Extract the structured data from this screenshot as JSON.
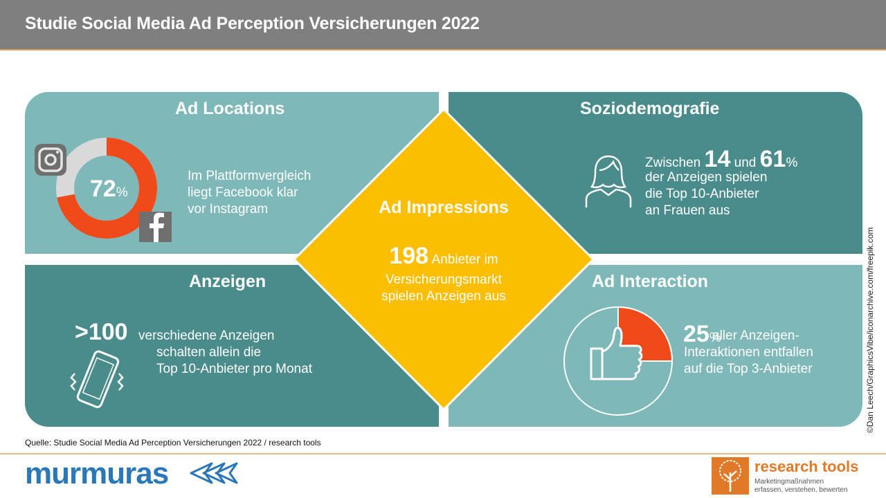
{
  "header": {
    "title": "Studie Social Media Ad Perception Versicherungen 2022"
  },
  "ad_locations": {
    "title": "Ad Locations",
    "value": "72",
    "unit": "%",
    "share": 0.72,
    "line1": "Im Plattformvergleich",
    "line2": "liegt Facebook klar",
    "line3": "vor Instagram",
    "icons": [
      "instagram-icon",
      "facebook-icon"
    ],
    "colors": {
      "facebook": "#f04a1a",
      "instagram": "#d9d9d9"
    }
  },
  "soziodemografie": {
    "title": "Soziodemografie",
    "prefix": "Zwischen",
    "value1": "14",
    "connector": "und",
    "value2": "61",
    "unit": "%",
    "line2": "der Anzeigen spielen",
    "line3": "die Top 10-Anbieter",
    "line4": "an Frauen aus",
    "icon": "woman-icon"
  },
  "anzeigen": {
    "title": "Anzeigen",
    "value": ">100",
    "line1": "verschiedene Anzeigen",
    "line2": "schalten allein die",
    "line3": "Top 10-Anbieter pro Monat",
    "icon": "smartphone-icon"
  },
  "ad_interaction": {
    "title": "Ad Interaction",
    "value": "25",
    "unit": "%",
    "share": 0.25,
    "line1": "aller Anzeigen-",
    "line2": "Interaktionen entfallen",
    "line3": "auf die Top 3-Anbieter",
    "icon": "thumbs-up-icon"
  },
  "ad_impressions": {
    "title": "Ad Impressions",
    "value": "198",
    "line1": "Anbieter im",
    "line2": "Versicherungsmarkt",
    "line3": "spielen Anzeigen aus",
    "color": "#fbbf00"
  },
  "credit": "©Dan Leech/GraphicsVibe/iconarchive.com/freepik.com",
  "source": "Quelle: Studie Social Media Ad Perception Versicherungen 2022 / research tools",
  "footer": {
    "murmuras": "murmuras",
    "research_tools": "research tools",
    "rt_tagline1": "Marketingmaßnahmen",
    "rt_tagline2": "erfassen, verstehen, bewerten"
  },
  "colors": {
    "teal_light": "#7fb8b9",
    "teal_dark": "#4a8c8c",
    "accent": "#f04a1a",
    "header": "#7f7f7f"
  }
}
